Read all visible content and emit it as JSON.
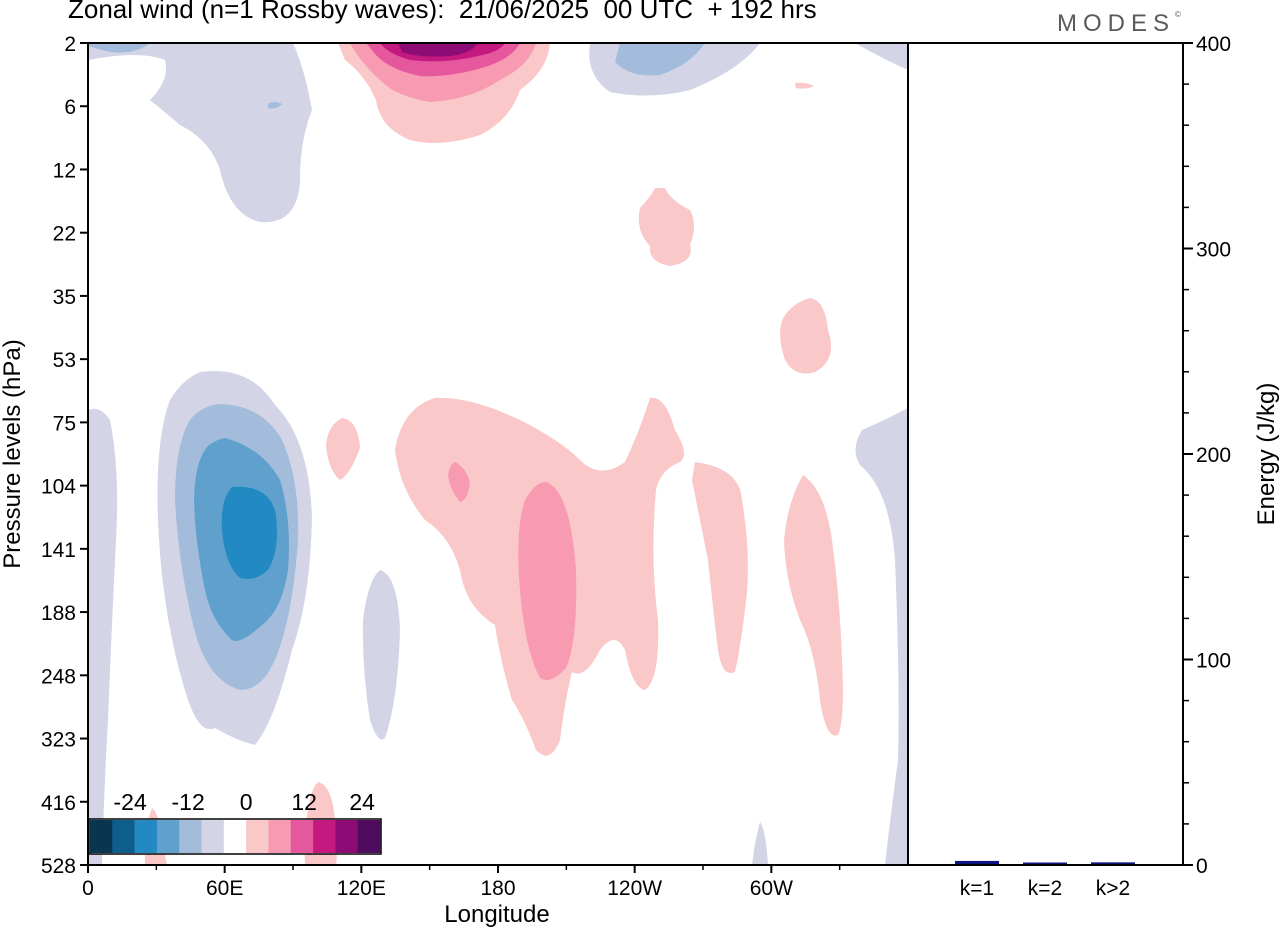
{
  "title": "Zonal wind (n=1 Rossby waves):  21/06/2025  00 UTC  + 192 hrs",
  "logo": "MODES",
  "logo_mark": "©",
  "chart_data": [
    {
      "type": "heatmap",
      "title": "Zonal wind (n=1 Rossby waves):  21/06/2025  00 UTC  + 192 hrs",
      "xlabel": "Longitude",
      "ylabel": "Pressure levels (hPa)",
      "x_ticks": [
        "0",
        "60E",
        "120E",
        "180",
        "120W",
        "60W"
      ],
      "x_tick_positions_deg": [
        0,
        60,
        120,
        180,
        240,
        300
      ],
      "x_range_deg": [
        0,
        360
      ],
      "y_ticks": [
        "2",
        "6",
        "12",
        "22",
        "35",
        "53",
        "75",
        "104",
        "141",
        "188",
        "248",
        "323",
        "416",
        "528"
      ],
      "y_scale": "pressure levels, top to bottom",
      "colorbar": {
        "labels": [
          "-24",
          "-12",
          "0",
          "12",
          "24"
        ],
        "bins": [
          -30,
          -25,
          -20,
          -15,
          -10,
          -5,
          0,
          5,
          10,
          15,
          20,
          25,
          30
        ],
        "colors": [
          "#0a3550",
          "#0d5e8c",
          "#2389c2",
          "#5fa0cc",
          "#a3bcdb",
          "#d3d5e6",
          "#ffffff",
          "#fac8c8",
          "#f79ab2",
          "#e6589e",
          "#c4197f",
          "#8d0b74",
          "#4f0b5e"
        ]
      },
      "regions": [
        {
          "name": "negative",
          "lon": 62,
          "level": "141",
          "value": -20
        },
        {
          "name": "negative",
          "lon": 60,
          "level": "141",
          "value": -15
        },
        {
          "name": "negative",
          "lon": 58,
          "level": "104",
          "value": -10
        },
        {
          "name": "negative",
          "lon": 58,
          "level": "104",
          "value": -5
        },
        {
          "name": "negative",
          "lon": 30,
          "level": "6",
          "value": -5
        },
        {
          "name": "negative",
          "lon": 120,
          "level": "248",
          "value": -5
        },
        {
          "name": "negative",
          "lon": 225,
          "level": "2",
          "value": -10
        },
        {
          "name": "negative",
          "lon": 10,
          "level": "2",
          "value": -10
        },
        {
          "name": "negative",
          "lon": 360,
          "level": "141",
          "value": -5
        },
        {
          "name": "positive",
          "lon": 150,
          "level": "2",
          "value": 25
        },
        {
          "name": "positive",
          "lon": 150,
          "level": "2",
          "value": 20
        },
        {
          "name": "positive",
          "lon": 150,
          "level": "2",
          "value": 15
        },
        {
          "name": "positive",
          "lon": 150,
          "level": "2",
          "value": 10
        },
        {
          "name": "positive",
          "lon": 150,
          "level": "6",
          "value": 5
        },
        {
          "name": "positive",
          "lon": 195,
          "level": "188",
          "value": 10
        },
        {
          "name": "positive",
          "lon": 190,
          "level": "141",
          "value": 5
        },
        {
          "name": "positive",
          "lon": 165,
          "level": "104",
          "value": 10
        },
        {
          "name": "positive",
          "lon": 110,
          "level": "104",
          "value": 5
        },
        {
          "name": "positive",
          "lon": 275,
          "level": "141",
          "value": 5
        },
        {
          "name": "positive",
          "lon": 320,
          "level": "188",
          "value": 5
        },
        {
          "name": "positive",
          "lon": 240,
          "level": "22",
          "value": 5
        },
        {
          "name": "positive",
          "lon": 320,
          "level": "53",
          "value": 5
        },
        {
          "name": "positive",
          "lon": 100,
          "level": "528",
          "value": 5
        }
      ]
    },
    {
      "type": "bar",
      "categories": [
        "k=1",
        "k=2",
        "k>2"
      ],
      "values": [
        1.5,
        0.5,
        0.8
      ],
      "ylabel": "Energy (J/kg)",
      "ylim": [
        0,
        400
      ],
      "y_ticks": [
        "0",
        "100",
        "200",
        "300",
        "400"
      ],
      "bar_color": "#0d1480"
    }
  ]
}
